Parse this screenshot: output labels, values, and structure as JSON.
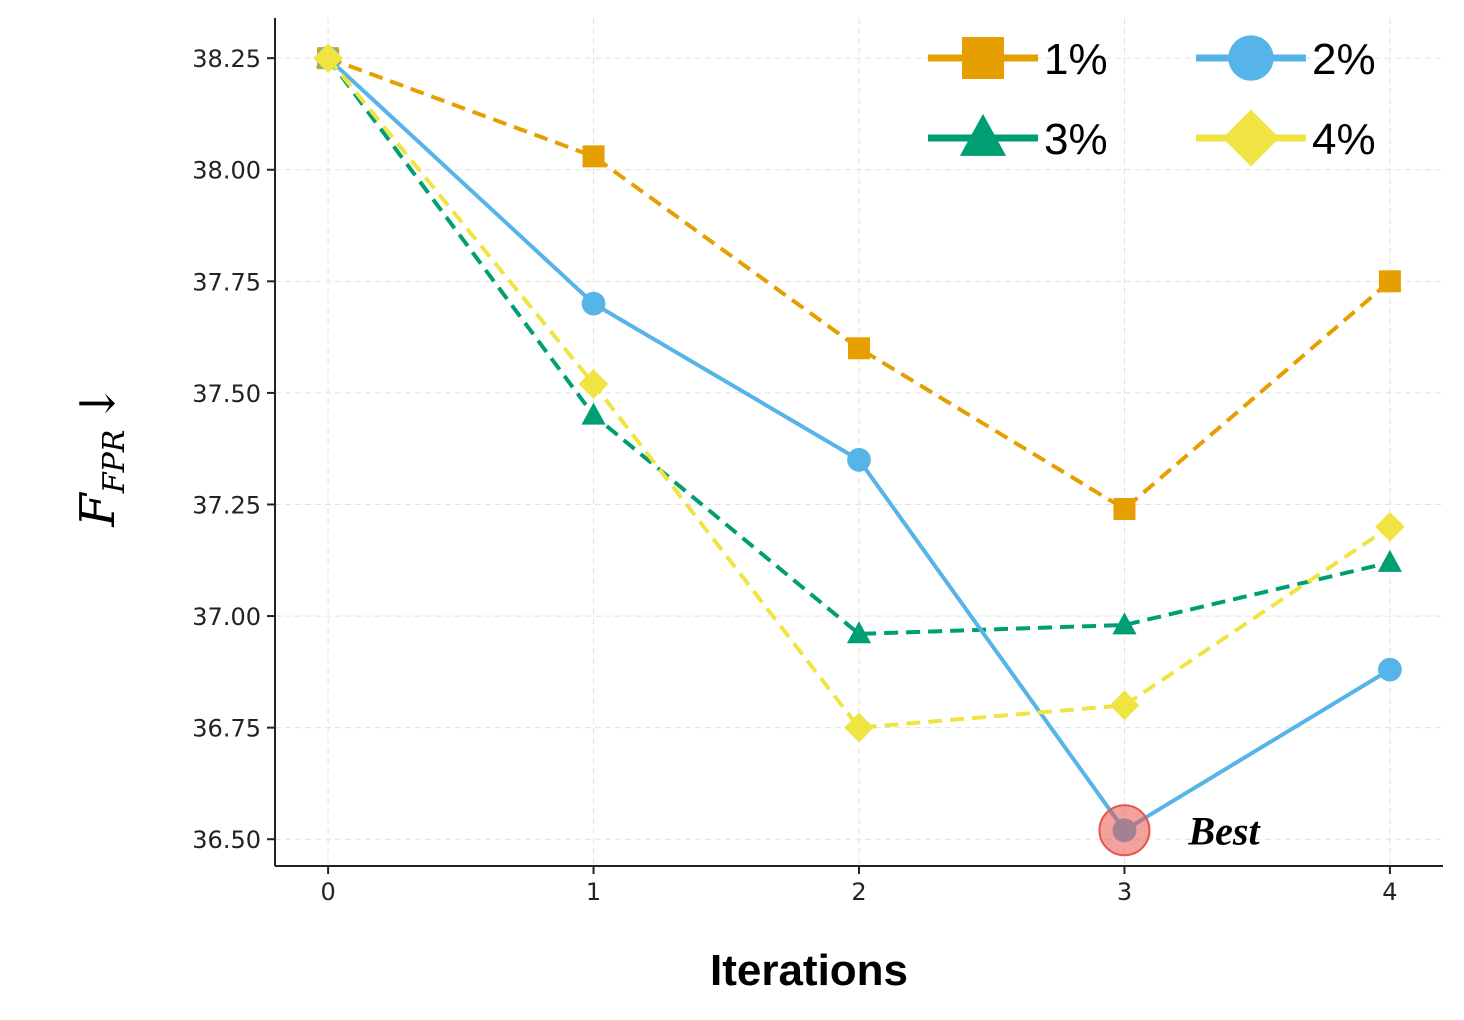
{
  "chart_data": {
    "type": "line",
    "title": "",
    "xlabel": "Iterations",
    "ylabel": {
      "main": "F",
      "sub": "FPR",
      "suffix": "↓"
    },
    "x": [
      0,
      1,
      2,
      3,
      4
    ],
    "x_tick_labels": [
      "0",
      "1",
      "2",
      "3",
      "4"
    ],
    "y_tick_labels": [
      "36.50",
      "36.75",
      "37.00",
      "37.25",
      "37.50",
      "37.75",
      "38.00",
      "38.25"
    ],
    "y_ticks": [
      36.5,
      36.75,
      37.0,
      37.25,
      37.5,
      37.75,
      38.0,
      38.25
    ],
    "xlim": [
      -0.2,
      4.2
    ],
    "ylim": [
      36.44,
      38.34
    ],
    "grid": true,
    "legend_position": "top-right",
    "series": [
      {
        "name": "1%",
        "values": [
          38.25,
          38.03,
          37.6,
          37.24,
          37.75
        ],
        "color": "#E69F00",
        "marker": "square",
        "line_style": "dashed"
      },
      {
        "name": "2%",
        "values": [
          38.25,
          37.7,
          37.35,
          36.52,
          36.88
        ],
        "color": "#56B4E9",
        "marker": "circle",
        "line_style": "solid"
      },
      {
        "name": "3%",
        "values": [
          38.25,
          37.45,
          36.96,
          36.98,
          37.12
        ],
        "color": "#009E73",
        "marker": "triangle",
        "line_style": "dashed"
      },
      {
        "name": "4%",
        "values": [
          38.25,
          37.52,
          36.75,
          36.8,
          37.2
        ],
        "color": "#F0E442",
        "marker": "diamond",
        "line_style": "dashed"
      }
    ],
    "annotations": [
      {
        "text": "Best",
        "x": 3,
        "y": 36.52,
        "highlight_color": "#E8534A"
      }
    ]
  }
}
